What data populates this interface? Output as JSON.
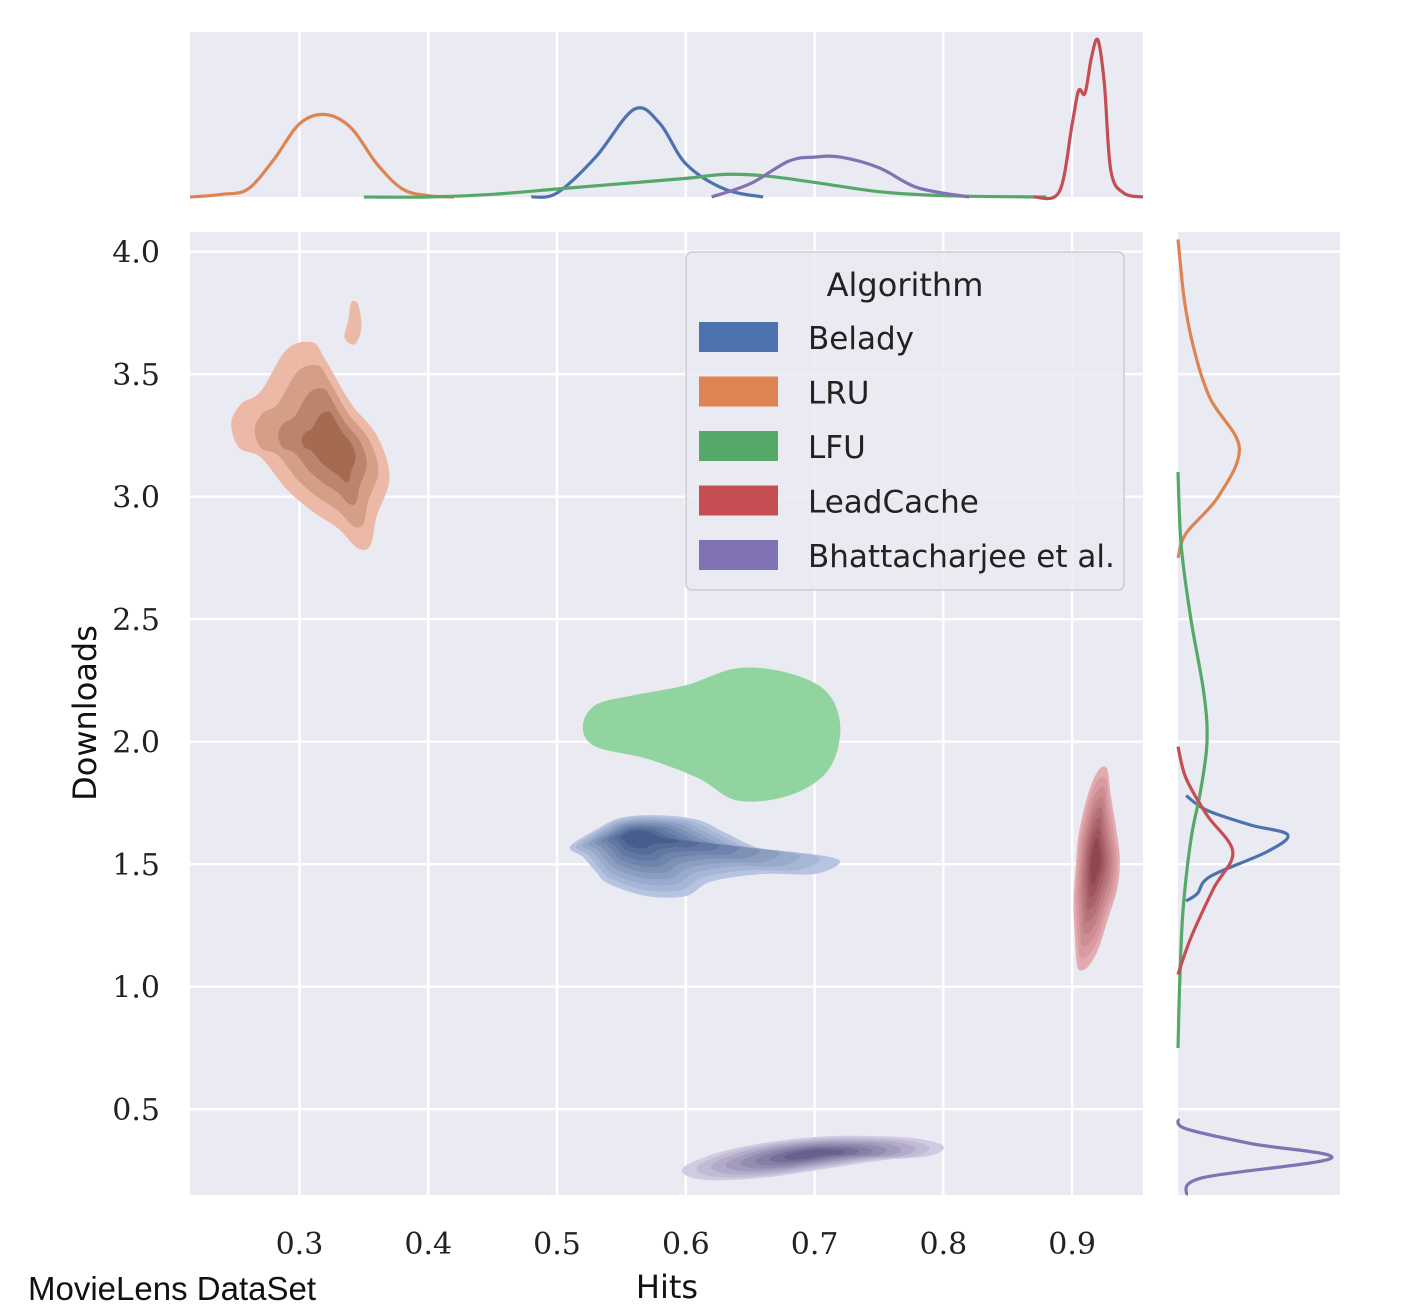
{
  "chart_data": {
    "type": "kde-jointplot",
    "xlabel": "Hits",
    "ylabel": "Downloads",
    "caption": "MovieLens DataSet",
    "xlim": [
      0.215,
      0.955
    ],
    "ylim": [
      0.15,
      4.08
    ],
    "xticks": [
      0.3,
      0.4,
      0.5,
      0.6,
      0.7,
      0.8,
      0.9
    ],
    "yticks": [
      0.5,
      1.0,
      1.5,
      2.0,
      2.5,
      3.0,
      3.5,
      4.0
    ],
    "xtick_labels": [
      "0.3",
      "0.4",
      "0.5",
      "0.6",
      "0.7",
      "0.8",
      "0.9"
    ],
    "ytick_labels": [
      "0.5",
      "1.0",
      "1.5",
      "2.0",
      "2.5",
      "3.0",
      "3.5",
      "4.0"
    ],
    "grid": true,
    "legend": {
      "title": "Algorithm",
      "placement": "upper-right"
    },
    "series": [
      {
        "name": "Belady",
        "color": "#4c72b0",
        "fill_color": "#b3c2e0",
        "center": [
          0.56,
          1.62
        ],
        "levels": 9,
        "outer_contour": [
          [
            0.53,
            1.64
          ],
          [
            0.55,
            1.69
          ],
          [
            0.58,
            1.7
          ],
          [
            0.61,
            1.68
          ],
          [
            0.63,
            1.63
          ],
          [
            0.66,
            1.56
          ],
          [
            0.7,
            1.54
          ],
          [
            0.72,
            1.51
          ],
          [
            0.7,
            1.46
          ],
          [
            0.66,
            1.46
          ],
          [
            0.62,
            1.43
          ],
          [
            0.6,
            1.37
          ],
          [
            0.57,
            1.37
          ],
          [
            0.54,
            1.42
          ],
          [
            0.53,
            1.47
          ],
          [
            0.52,
            1.53
          ],
          [
            0.51,
            1.57
          ]
        ],
        "marginal_x": [
          [
            0.48,
            0.0
          ],
          [
            0.5,
            0.03
          ],
          [
            0.53,
            0.3
          ],
          [
            0.56,
            0.66
          ],
          [
            0.58,
            0.55
          ],
          [
            0.6,
            0.25
          ],
          [
            0.63,
            0.06
          ],
          [
            0.66,
            0.0
          ]
        ],
        "marginal_y": [
          [
            1.35,
            0.05
          ],
          [
            1.38,
            0.12
          ],
          [
            1.45,
            0.2
          ],
          [
            1.55,
            0.55
          ],
          [
            1.62,
            0.68
          ],
          [
            1.66,
            0.45
          ],
          [
            1.72,
            0.18
          ],
          [
            1.78,
            0.05
          ]
        ]
      },
      {
        "name": "LRU",
        "color": "#dd8452",
        "fill_color": "#ebb6a0",
        "center": [
          0.33,
          3.2
        ],
        "levels": 4,
        "outer_contour": [
          [
            0.27,
            3.43
          ],
          [
            0.29,
            3.6
          ],
          [
            0.31,
            3.63
          ],
          [
            0.32,
            3.56
          ],
          [
            0.34,
            3.38
          ],
          [
            0.36,
            3.25
          ],
          [
            0.37,
            3.08
          ],
          [
            0.36,
            2.92
          ],
          [
            0.355,
            2.8
          ],
          [
            0.345,
            2.79
          ],
          [
            0.33,
            2.87
          ],
          [
            0.31,
            2.94
          ],
          [
            0.29,
            3.03
          ],
          [
            0.27,
            3.16
          ],
          [
            0.253,
            3.2
          ],
          [
            0.247,
            3.3
          ],
          [
            0.255,
            3.38
          ]
        ],
        "secondary_blob": [
          [
            0.335,
            3.65
          ],
          [
            0.338,
            3.72
          ],
          [
            0.34,
            3.79
          ],
          [
            0.345,
            3.79
          ],
          [
            0.348,
            3.72
          ],
          [
            0.347,
            3.66
          ],
          [
            0.342,
            3.62
          ]
        ],
        "marginal_x": [
          [
            0.215,
            0.0
          ],
          [
            0.24,
            0.02
          ],
          [
            0.26,
            0.06
          ],
          [
            0.28,
            0.28
          ],
          [
            0.3,
            0.55
          ],
          [
            0.32,
            0.62
          ],
          [
            0.34,
            0.52
          ],
          [
            0.36,
            0.25
          ],
          [
            0.38,
            0.06
          ],
          [
            0.4,
            0.01
          ],
          [
            0.42,
            0.0
          ]
        ],
        "marginal_y": [
          [
            2.75,
            0.0
          ],
          [
            2.85,
            0.05
          ],
          [
            3.0,
            0.25
          ],
          [
            3.2,
            0.38
          ],
          [
            3.4,
            0.2
          ],
          [
            3.6,
            0.1
          ],
          [
            3.8,
            0.04
          ],
          [
            4.05,
            0.0
          ]
        ]
      },
      {
        "name": "LFU",
        "color": "#55a868",
        "fill_color": "#8dd39b",
        "center": [
          0.62,
          2.02
        ],
        "levels": 1,
        "outer_contour": [
          [
            0.52,
            2.06
          ],
          [
            0.53,
            2.15
          ],
          [
            0.56,
            2.19
          ],
          [
            0.6,
            2.23
          ],
          [
            0.64,
            2.3
          ],
          [
            0.68,
            2.28
          ],
          [
            0.71,
            2.2
          ],
          [
            0.72,
            2.05
          ],
          [
            0.71,
            1.88
          ],
          [
            0.68,
            1.78
          ],
          [
            0.64,
            1.76
          ],
          [
            0.61,
            1.85
          ],
          [
            0.57,
            1.93
          ],
          [
            0.53,
            1.98
          ]
        ],
        "marginal_x": [
          [
            0.35,
            0.0
          ],
          [
            0.4,
            0.0
          ],
          [
            0.45,
            0.02
          ],
          [
            0.5,
            0.06
          ],
          [
            0.55,
            0.1
          ],
          [
            0.6,
            0.14
          ],
          [
            0.63,
            0.17
          ],
          [
            0.66,
            0.16
          ],
          [
            0.7,
            0.11
          ],
          [
            0.75,
            0.04
          ],
          [
            0.8,
            0.01
          ],
          [
            0.88,
            0.0
          ]
        ],
        "marginal_y": [
          [
            0.75,
            0.0
          ],
          [
            1.0,
            0.01
          ],
          [
            1.3,
            0.03
          ],
          [
            1.6,
            0.08
          ],
          [
            1.8,
            0.14
          ],
          [
            2.0,
            0.18
          ],
          [
            2.2,
            0.16
          ],
          [
            2.5,
            0.08
          ],
          [
            2.8,
            0.02
          ],
          [
            3.1,
            0.0
          ]
        ]
      },
      {
        "name": "LeadCache",
        "color": "#c44e52",
        "fill_color": "#e3a8ab",
        "center": [
          0.918,
          1.52
        ],
        "levels": 8,
        "outer_contour": [
          [
            0.905,
            1.62
          ],
          [
            0.912,
            1.78
          ],
          [
            0.92,
            1.88
          ],
          [
            0.927,
            1.89
          ],
          [
            0.93,
            1.78
          ],
          [
            0.934,
            1.65
          ],
          [
            0.937,
            1.52
          ],
          [
            0.935,
            1.4
          ],
          [
            0.928,
            1.28
          ],
          [
            0.92,
            1.15
          ],
          [
            0.912,
            1.08
          ],
          [
            0.905,
            1.07
          ],
          [
            0.903,
            1.13
          ],
          [
            0.902,
            1.22
          ],
          [
            0.901,
            1.35
          ],
          [
            0.903,
            1.5
          ]
        ],
        "marginal_x": [
          [
            0.87,
            0.0
          ],
          [
            0.89,
            0.04
          ],
          [
            0.9,
            0.55
          ],
          [
            0.905,
            0.8
          ],
          [
            0.91,
            0.78
          ],
          [
            0.915,
            1.05
          ],
          [
            0.92,
            1.18
          ],
          [
            0.925,
            0.85
          ],
          [
            0.93,
            0.2
          ],
          [
            0.94,
            0.03
          ],
          [
            0.955,
            0.0
          ]
        ],
        "marginal_y": [
          [
            1.05,
            0.0
          ],
          [
            1.2,
            0.08
          ],
          [
            1.4,
            0.22
          ],
          [
            1.55,
            0.34
          ],
          [
            1.7,
            0.18
          ],
          [
            1.85,
            0.05
          ],
          [
            1.98,
            0.0
          ]
        ]
      },
      {
        "name": "Bhattacharjee et al.",
        "color": "#8172b3",
        "fill_color": "#cfc8e0",
        "center": [
          0.7,
          0.32
        ],
        "levels": 8,
        "outer_contour": [
          [
            0.6,
            0.27
          ],
          [
            0.63,
            0.33
          ],
          [
            0.67,
            0.37
          ],
          [
            0.71,
            0.39
          ],
          [
            0.75,
            0.39
          ],
          [
            0.78,
            0.38
          ],
          [
            0.8,
            0.35
          ],
          [
            0.79,
            0.31
          ],
          [
            0.75,
            0.29
          ],
          [
            0.7,
            0.25
          ],
          [
            0.66,
            0.22
          ],
          [
            0.62,
            0.21
          ],
          [
            0.6,
            0.23
          ]
        ],
        "marginal_x": [
          [
            0.62,
            0.0
          ],
          [
            0.65,
            0.1
          ],
          [
            0.68,
            0.27
          ],
          [
            0.7,
            0.3
          ],
          [
            0.72,
            0.3
          ],
          [
            0.75,
            0.22
          ],
          [
            0.78,
            0.07
          ],
          [
            0.82,
            0.0
          ]
        ],
        "marginal_y": [
          [
            0.15,
            0.05
          ],
          [
            0.22,
            0.15
          ],
          [
            0.3,
            0.95
          ],
          [
            0.36,
            0.45
          ],
          [
            0.42,
            0.05
          ],
          [
            0.46,
            0.0
          ]
        ]
      }
    ]
  }
}
